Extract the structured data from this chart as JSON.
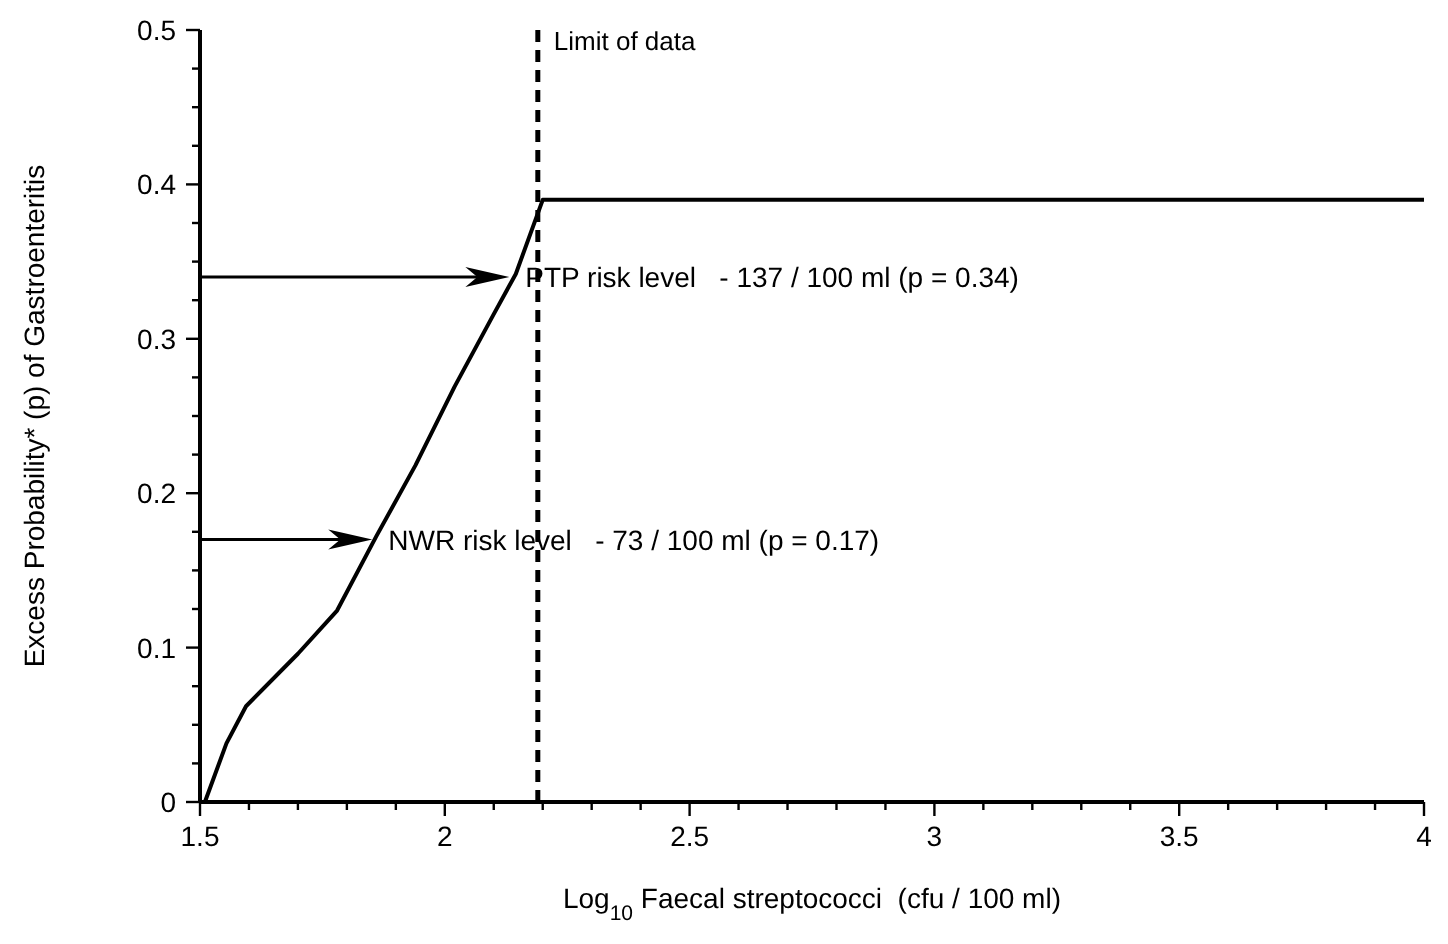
{
  "chart_data": {
    "type": "line",
    "xlabel": "Log$_{10}$ Faecal streptococci  (cfu / 100 ml)",
    "ylabel": "Excess Probability* (p) of Gastroenteritis",
    "x": [
      1.51,
      1.554,
      1.594,
      1.7,
      1.78,
      1.86,
      1.94,
      2.02,
      2.1,
      2.145,
      2.2,
      4
    ],
    "series": [
      {
        "color": "#000000",
        "values": [
          0,
          0.038,
          0.062,
          0.096,
          0.124,
          0.172,
          0.218,
          0.269,
          0.316,
          0.342,
          0.39,
          0.39
        ]
      }
    ],
    "xlim": [
      1.5,
      4
    ],
    "ylim": [
      0,
      0.5
    ],
    "xticks": [
      1.5,
      {
        "value": 1.6,
        "label": null
      },
      {
        "value": 1.7,
        "label": null
      },
      {
        "value": 1.8,
        "label": null
      },
      {
        "value": 1.9,
        "label": null
      },
      2,
      {
        "value": 2.1,
        "label": null
      },
      {
        "value": 2.2,
        "label": null
      },
      {
        "value": 2.3,
        "label": null
      },
      {
        "value": 2.4,
        "label": null
      },
      2.5,
      {
        "value": 2.6,
        "label": null
      },
      {
        "value": 2.7,
        "label": null
      },
      {
        "value": 2.8,
        "label": null
      },
      {
        "value": 2.9,
        "label": null
      },
      3,
      {
        "value": 3.1,
        "label": null
      },
      {
        "value": 3.2,
        "label": null
      },
      {
        "value": 3.3,
        "label": null
      },
      {
        "value": 3.4,
        "label": null
      },
      3.5,
      {
        "value": 3.6,
        "label": null
      },
      {
        "value": 3.7,
        "label": null
      },
      {
        "value": 3.8,
        "label": null
      },
      {
        "value": 3.9,
        "label": null
      },
      4
    ],
    "yticks": [
      0,
      {
        "value": 0.025,
        "label": null
      },
      {
        "value": 0.05,
        "label": null
      },
      {
        "value": 0.075,
        "label": null
      },
      0.1,
      {
        "value": 0.125,
        "label": null
      },
      {
        "value": 0.15,
        "label": null
      },
      {
        "value": 0.175,
        "label": null
      },
      0.2,
      {
        "value": 0.225,
        "label": null
      },
      {
        "value": 0.25,
        "label": null
      },
      {
        "value": 0.275,
        "label": null
      },
      0.3,
      {
        "value": 0.325,
        "label": null
      },
      {
        "value": 0.35,
        "label": null
      },
      {
        "value": 0.375,
        "label": null
      },
      0.4,
      {
        "value": 0.425,
        "label": null
      },
      {
        "value": 0.45,
        "label": null
      },
      {
        "value": 0.475,
        "label": null
      },
      0.5
    ],
    "ref_lines": [
      {
        "axis": "x",
        "value": 2.19,
        "label": "Limit of data",
        "line_style": "dashed",
        "color": "#000000"
      }
    ],
    "annotations": [
      {
        "text": "PTP risk level   - 137 / 100 ml (p = 0.34)",
        "x": 2.14,
        "y": 0.34
      },
      {
        "text": "NWR risk level   - 73 / 100 ml (p = 0.17)",
        "x": 1.86,
        "y": 0.17
      }
    ],
    "grid": false,
    "marker": "none",
    "line_style": "solid"
  }
}
